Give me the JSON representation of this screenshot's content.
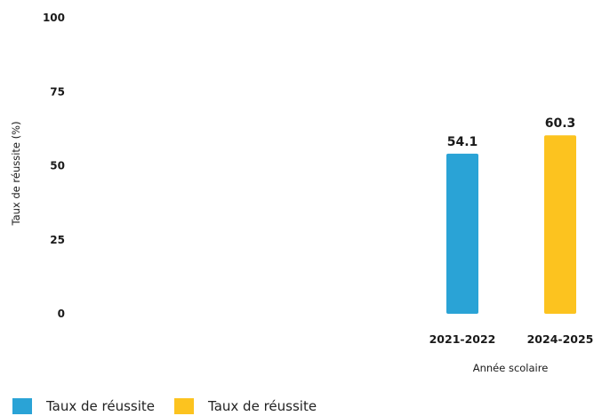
{
  "chart_data": {
    "type": "bar",
    "categories": [
      "2021-2022",
      "2024-2025"
    ],
    "series": [
      {
        "name": "Taux de réussite",
        "values": [
          54.1,
          60.3
        ],
        "colors": [
          "#2aa3d6",
          "#fcc31f"
        ]
      }
    ],
    "data_labels": [
      "54.1",
      "60.3"
    ],
    "xlabel": "Année scolaire",
    "ylabel": "Taux de réussite (%)",
    "ylim": [
      0,
      100
    ],
    "yticks": [
      0,
      25,
      50,
      75,
      100
    ],
    "grid": false,
    "legend": {
      "position": "bottom-left",
      "entries": [
        {
          "label": "Taux de réussite",
          "color": "#2aa3d6"
        },
        {
          "label": "Taux de réussite",
          "color": "#fcc31f"
        }
      ]
    }
  }
}
